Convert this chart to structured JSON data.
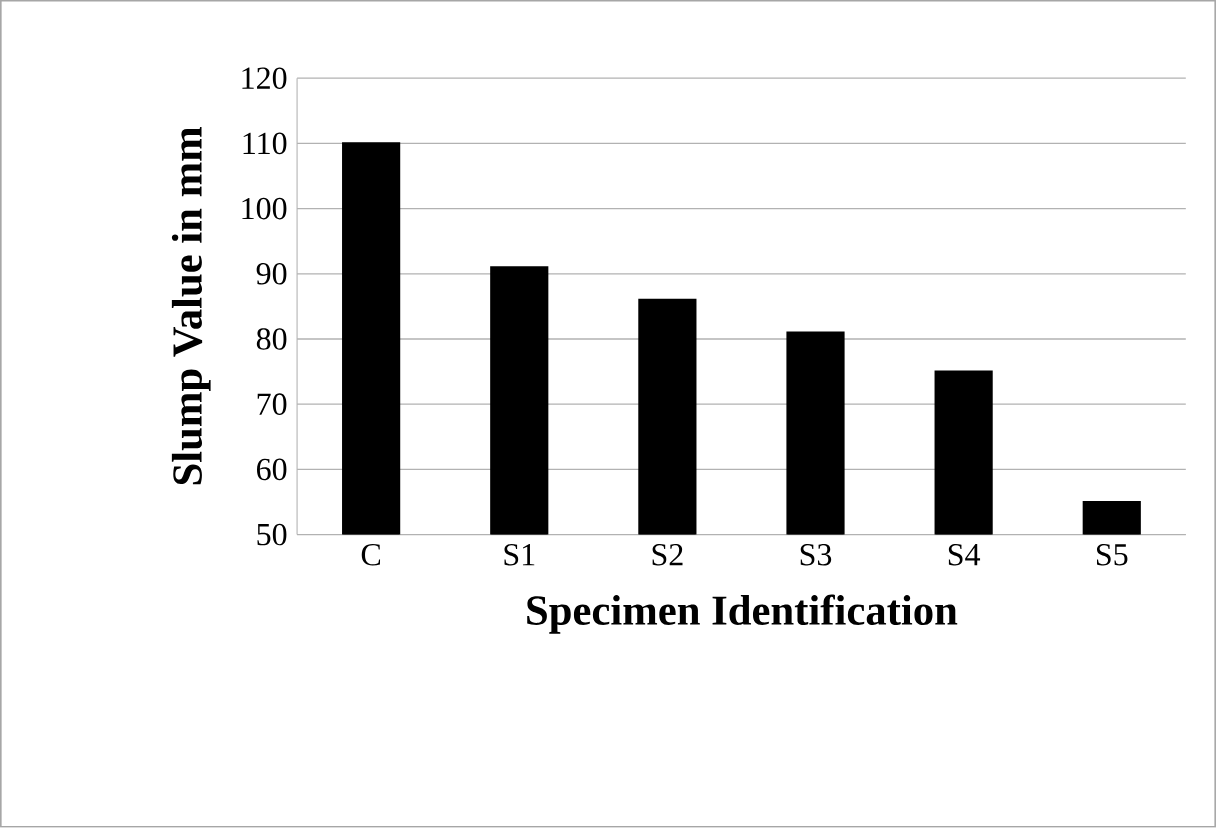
{
  "chart_data": {
    "type": "bar",
    "xlabel": "Specimen  Identification",
    "ylabel": "Slump Value in mm",
    "categories": [
      "C",
      "S1",
      "S2",
      "S3",
      "S4",
      "S5"
    ],
    "values": [
      110,
      91,
      86,
      81,
      75,
      55
    ],
    "color": "#000000",
    "ylim": [
      50,
      120
    ],
    "yticks": [
      50,
      60,
      70,
      80,
      90,
      100,
      110,
      120
    ],
    "grid": "y"
  }
}
